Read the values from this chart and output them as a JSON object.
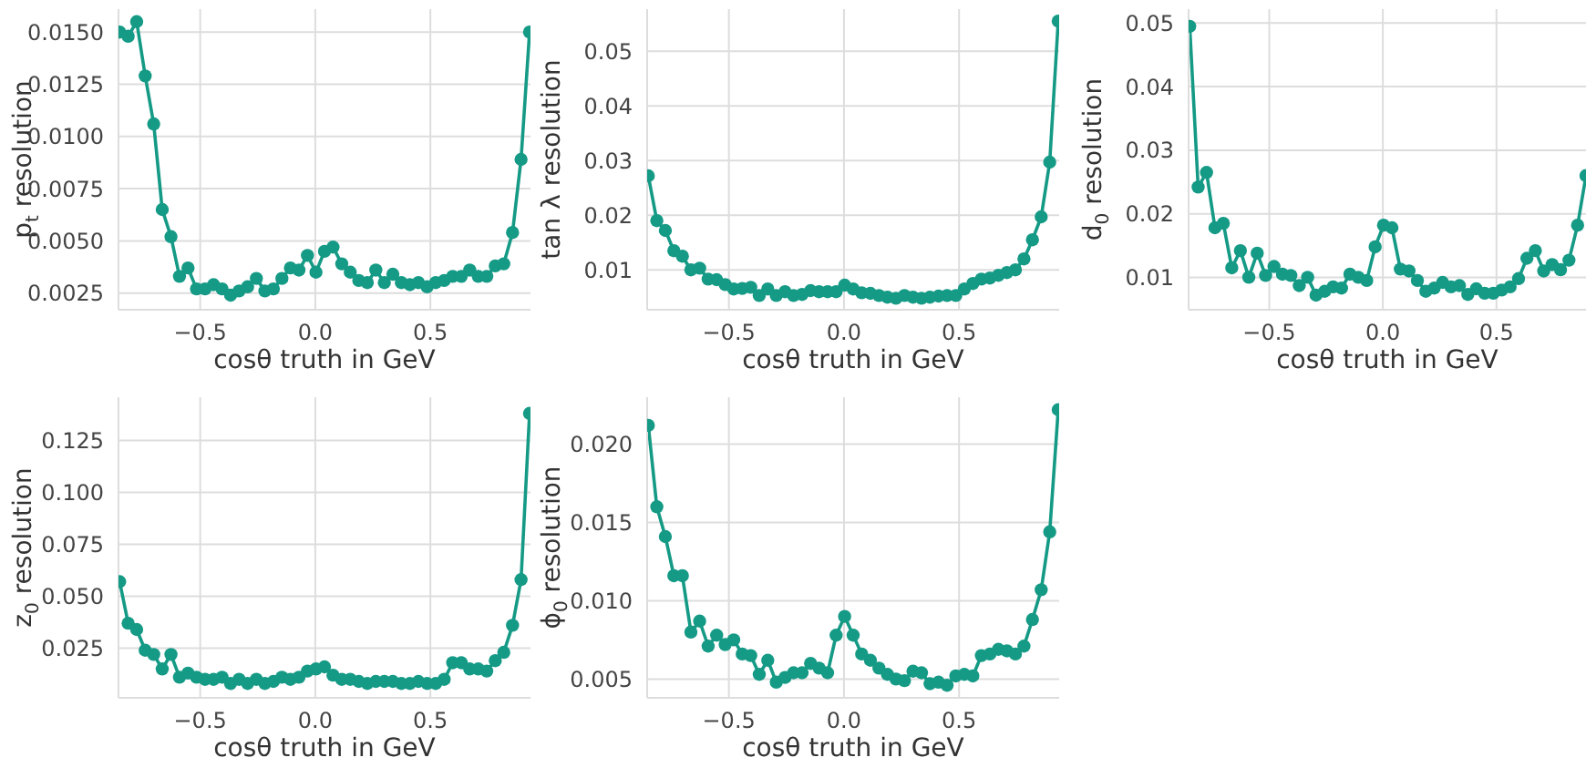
{
  "chart_data": [
    {
      "type": "line",
      "xlabel": "cosθ truth in GeV",
      "ylabel": "p$_{t}$ resolution",
      "grid": true,
      "marker": "circle",
      "line_style": "solid",
      "x": [
        -0.85,
        -0.813,
        -0.776,
        -0.739,
        -0.702,
        -0.665,
        -0.627,
        -0.59,
        -0.553,
        -0.516,
        -0.479,
        -0.442,
        -0.405,
        -0.368,
        -0.331,
        -0.294,
        -0.256,
        -0.219,
        -0.182,
        -0.145,
        -0.108,
        -0.071,
        -0.034,
        0.003,
        0.04,
        0.077,
        0.115,
        0.152,
        0.189,
        0.226,
        0.263,
        0.3,
        0.337,
        0.374,
        0.411,
        0.448,
        0.486,
        0.523,
        0.56,
        0.597,
        0.634,
        0.671,
        0.708,
        0.745,
        0.782,
        0.819,
        0.857,
        0.894,
        0.931
      ],
      "series": [
        {
          "color": "#159a86",
          "values": [
            0.015,
            0.0148,
            0.0155,
            0.0129,
            0.0106,
            0.0065,
            0.0052,
            0.0033,
            0.0037,
            0.0027,
            0.0027,
            0.0029,
            0.0027,
            0.0024,
            0.0026,
            0.0028,
            0.0032,
            0.0026,
            0.0027,
            0.0032,
            0.0037,
            0.0036,
            0.0043,
            0.0035,
            0.0045,
            0.0047,
            0.0039,
            0.0035,
            0.0031,
            0.003,
            0.0036,
            0.003,
            0.0034,
            0.003,
            0.0029,
            0.003,
            0.0028,
            0.003,
            0.0031,
            0.0033,
            0.0033,
            0.0036,
            0.0033,
            0.0033,
            0.0038,
            0.0039,
            0.0054,
            0.0089,
            0.015
          ]
        }
      ],
      "xlim": [
        -0.855,
        0.935
      ],
      "xticks": [
        {
          "value": -0.5,
          "label": "−0.5"
        },
        {
          "value": 0,
          "label": "0.0"
        },
        {
          "value": 0.5,
          "label": "0.5"
        }
      ],
      "ylim": [
        0.0017,
        0.0161
      ],
      "yticks": [
        {
          "value": 0.0025,
          "label": "0.0025"
        },
        {
          "value": 0.005,
          "label": "0.0050"
        },
        {
          "value": 0.0075,
          "label": "0.0075"
        },
        {
          "value": 0.01,
          "label": "0.0100"
        },
        {
          "value": 0.0125,
          "label": "0.0125"
        },
        {
          "value": 0.015,
          "label": "0.0150"
        }
      ]
    },
    {
      "type": "line",
      "xlabel": "cosθ truth in GeV",
      "ylabel": "tan λ resolution",
      "grid": true,
      "marker": "circle",
      "line_style": "solid",
      "x": [
        -0.85,
        -0.813,
        -0.776,
        -0.739,
        -0.702,
        -0.665,
        -0.627,
        -0.59,
        -0.553,
        -0.516,
        -0.479,
        -0.442,
        -0.405,
        -0.368,
        -0.331,
        -0.294,
        -0.256,
        -0.219,
        -0.182,
        -0.145,
        -0.108,
        -0.071,
        -0.034,
        0.003,
        0.04,
        0.077,
        0.115,
        0.152,
        0.189,
        0.226,
        0.263,
        0.3,
        0.337,
        0.374,
        0.411,
        0.448,
        0.486,
        0.523,
        0.56,
        0.597,
        0.634,
        0.671,
        0.708,
        0.745,
        0.782,
        0.819,
        0.857,
        0.894,
        0.931
      ],
      "series": [
        {
          "color": "#159a86",
          "values": [
            0.0272,
            0.019,
            0.0172,
            0.0135,
            0.0125,
            0.01,
            0.0103,
            0.0083,
            0.0082,
            0.0073,
            0.0065,
            0.0066,
            0.0068,
            0.0053,
            0.0065,
            0.0053,
            0.006,
            0.0053,
            0.0055,
            0.0062,
            0.006,
            0.006,
            0.006,
            0.0072,
            0.0065,
            0.0058,
            0.0057,
            0.0053,
            0.005,
            0.0048,
            0.0053,
            0.005,
            0.0048,
            0.005,
            0.0052,
            0.0053,
            0.0053,
            0.0065,
            0.0075,
            0.0083,
            0.0085,
            0.009,
            0.0095,
            0.01,
            0.012,
            0.0155,
            0.0197,
            0.0297,
            0.0555
          ]
        }
      ],
      "xlim": [
        -0.855,
        0.935
      ],
      "xticks": [
        {
          "value": -0.5,
          "label": "−0.5"
        },
        {
          "value": 0,
          "label": "0.0"
        },
        {
          "value": 0.5,
          "label": "0.5"
        }
      ],
      "ylim": [
        0.0027,
        0.0577
      ],
      "yticks": [
        0.01,
        0.02,
        0.03,
        0.04,
        0.05
      ]
    },
    {
      "type": "line",
      "xlabel": "cosθ truth in GeV",
      "ylabel": "d$_{0}$ resolution",
      "grid": true,
      "marker": "circle",
      "line_style": "solid",
      "x": [
        -0.85,
        -0.813,
        -0.776,
        -0.739,
        -0.702,
        -0.665,
        -0.627,
        -0.59,
        -0.553,
        -0.516,
        -0.479,
        -0.442,
        -0.405,
        -0.368,
        -0.331,
        -0.294,
        -0.256,
        -0.219,
        -0.182,
        -0.145,
        -0.108,
        -0.071,
        -0.034,
        0.003,
        0.04,
        0.077,
        0.115,
        0.152,
        0.189,
        0.226,
        0.263,
        0.3,
        0.337,
        0.374,
        0.411,
        0.448,
        0.486,
        0.523,
        0.56,
        0.597,
        0.634,
        0.671,
        0.708,
        0.745,
        0.782,
        0.819,
        0.857,
        0.894
      ],
      "series": [
        {
          "color": "#159a86",
          "values": [
            0.0495,
            0.0242,
            0.0265,
            0.0178,
            0.0185,
            0.0115,
            0.0142,
            0.01,
            0.0138,
            0.0103,
            0.0117,
            0.0105,
            0.0103,
            0.0087,
            0.01,
            0.0072,
            0.0078,
            0.0085,
            0.0083,
            0.0105,
            0.01,
            0.0095,
            0.0148,
            0.0182,
            0.0178,
            0.0113,
            0.011,
            0.0095,
            0.0078,
            0.0083,
            0.0092,
            0.0085,
            0.0087,
            0.0073,
            0.0082,
            0.0075,
            0.0075,
            0.008,
            0.0085,
            0.0098,
            0.013,
            0.0142,
            0.011,
            0.012,
            0.0112,
            0.0127,
            0.0182,
            0.026
          ]
        }
      ],
      "xlim": [
        -0.855,
        0.894
      ],
      "xticks": [
        {
          "value": -0.5,
          "label": "−0.5"
        },
        {
          "value": 0,
          "label": "0.0"
        },
        {
          "value": 0.5,
          "label": "0.5"
        }
      ],
      "ylim": [
        0.0049,
        0.0522
      ],
      "yticks": [
        0.01,
        0.02,
        0.03,
        0.04,
        0.05
      ]
    },
    {
      "type": "line",
      "xlabel": "cosθ truth in GeV",
      "ylabel": "z$_{0}$ resolution",
      "grid": true,
      "marker": "circle",
      "line_style": "solid",
      "x": [
        -0.85,
        -0.813,
        -0.776,
        -0.739,
        -0.702,
        -0.665,
        -0.627,
        -0.59,
        -0.553,
        -0.516,
        -0.479,
        -0.442,
        -0.405,
        -0.368,
        -0.331,
        -0.294,
        -0.256,
        -0.219,
        -0.182,
        -0.145,
        -0.108,
        -0.071,
        -0.034,
        0.003,
        0.04,
        0.077,
        0.115,
        0.152,
        0.189,
        0.226,
        0.263,
        0.3,
        0.337,
        0.374,
        0.411,
        0.448,
        0.486,
        0.523,
        0.56,
        0.597,
        0.634,
        0.671,
        0.708,
        0.745,
        0.782,
        0.819,
        0.857,
        0.894,
        0.931
      ],
      "series": [
        {
          "color": "#159a86",
          "values": [
            0.057,
            0.037,
            0.034,
            0.024,
            0.022,
            0.015,
            0.022,
            0.011,
            0.013,
            0.011,
            0.01,
            0.01,
            0.011,
            0.008,
            0.01,
            0.008,
            0.01,
            0.008,
            0.009,
            0.011,
            0.01,
            0.011,
            0.014,
            0.015,
            0.016,
            0.012,
            0.01,
            0.01,
            0.009,
            0.008,
            0.009,
            0.009,
            0.009,
            0.008,
            0.008,
            0.009,
            0.008,
            0.008,
            0.01,
            0.018,
            0.018,
            0.015,
            0.015,
            0.014,
            0.019,
            0.023,
            0.036,
            0.058,
            0.138
          ]
        }
      ],
      "xlim": [
        -0.855,
        0.935
      ],
      "xticks": [
        {
          "value": -0.5,
          "label": "−0.5"
        },
        {
          "value": 0,
          "label": "0.0"
        },
        {
          "value": 0.5,
          "label": "0.5"
        }
      ],
      "ylim": [
        0.0011,
        0.1458
      ],
      "yticks": [
        {
          "value": 0.025,
          "label": "0.025"
        },
        {
          "value": 0.05,
          "label": "0.050"
        },
        {
          "value": 0.075,
          "label": "0.075"
        },
        {
          "value": 0.1,
          "label": "0.100"
        },
        {
          "value": 0.125,
          "label": "0.125"
        }
      ]
    },
    {
      "type": "line",
      "xlabel": "cosθ truth in GeV",
      "ylabel": "ϕ$_{0}$ resolution",
      "grid": true,
      "marker": "circle",
      "line_style": "solid",
      "x": [
        -0.85,
        -0.813,
        -0.776,
        -0.739,
        -0.702,
        -0.665,
        -0.627,
        -0.59,
        -0.553,
        -0.516,
        -0.479,
        -0.442,
        -0.405,
        -0.368,
        -0.331,
        -0.294,
        -0.256,
        -0.219,
        -0.182,
        -0.145,
        -0.108,
        -0.071,
        -0.034,
        0.003,
        0.04,
        0.077,
        0.115,
        0.152,
        0.189,
        0.226,
        0.263,
        0.3,
        0.337,
        0.374,
        0.411,
        0.448,
        0.486,
        0.523,
        0.56,
        0.597,
        0.634,
        0.671,
        0.708,
        0.745,
        0.782,
        0.819,
        0.857,
        0.894,
        0.931
      ],
      "series": [
        {
          "color": "#159a86",
          "values": [
            0.0212,
            0.016,
            0.0141,
            0.0116,
            0.0116,
            0.008,
            0.0087,
            0.0071,
            0.0078,
            0.0072,
            0.0075,
            0.0066,
            0.0065,
            0.0053,
            0.0062,
            0.0048,
            0.0051,
            0.0054,
            0.0054,
            0.006,
            0.0057,
            0.0054,
            0.0078,
            0.009,
            0.0078,
            0.0066,
            0.0062,
            0.0057,
            0.0053,
            0.005,
            0.0049,
            0.0055,
            0.0054,
            0.0047,
            0.0048,
            0.0046,
            0.0052,
            0.0053,
            0.0052,
            0.0065,
            0.0066,
            0.0069,
            0.0068,
            0.0066,
            0.0071,
            0.0088,
            0.0107,
            0.0144,
            0.0222
          ]
        }
      ],
      "xlim": [
        -0.855,
        0.935
      ],
      "xticks": [
        {
          "value": -0.5,
          "label": "−0.5"
        },
        {
          "value": 0,
          "label": "0.0"
        },
        {
          "value": 0.5,
          "label": "0.5"
        }
      ],
      "ylim": [
        0.0038,
        0.023
      ],
      "yticks": [
        {
          "value": 0.005,
          "label": "0.005"
        },
        {
          "value": 0.01,
          "label": "0.010"
        },
        {
          "value": 0.015,
          "label": "0.015"
        },
        {
          "value": 0.02,
          "label": "0.020"
        }
      ]
    }
  ]
}
